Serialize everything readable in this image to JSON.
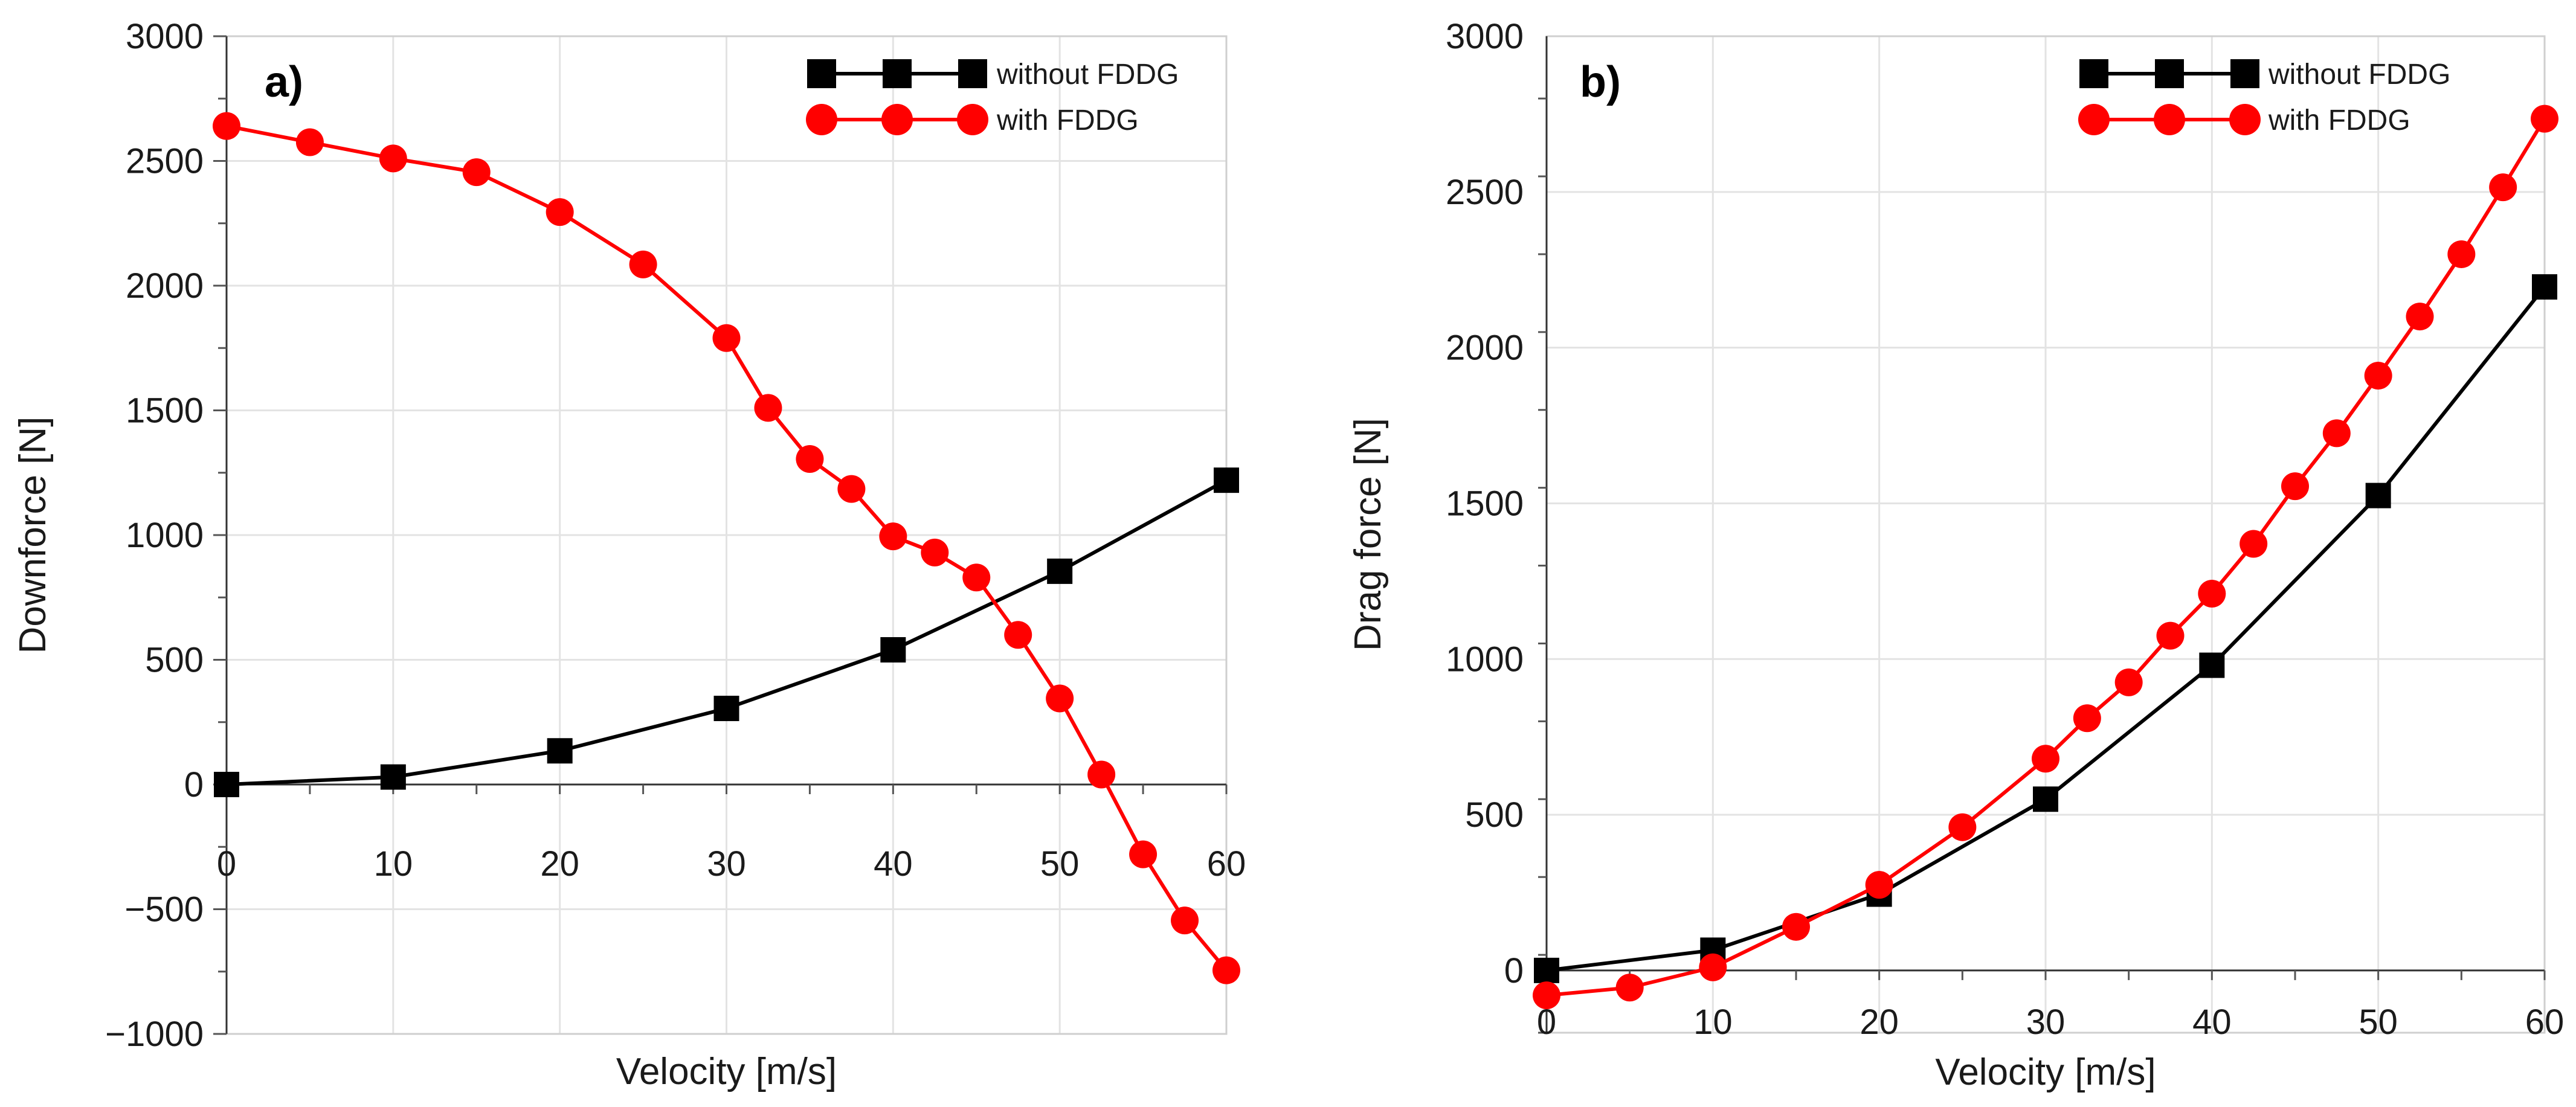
{
  "chart_data": [
    {
      "type": "line",
      "panel_label": "a)",
      "xlabel": "Velocity [m/s]",
      "ylabel": "Downforce [N]",
      "xlim": [
        0,
        60
      ],
      "ylim": [
        -1000,
        3000
      ],
      "xticks": [
        0,
        10,
        20,
        30,
        40,
        50,
        60
      ],
      "yticks": [
        -1000,
        -500,
        0,
        500,
        1000,
        1500,
        2000,
        2500,
        3000
      ],
      "grid": true,
      "legend_position": "top-right",
      "series": [
        {
          "name": "without FDDG",
          "color": "#000000",
          "marker": "square",
          "x": [
            0,
            10,
            20,
            30,
            40,
            50,
            60
          ],
          "y": [
            0,
            30,
            135,
            305,
            540,
            855,
            1220
          ]
        },
        {
          "name": "with FDDG",
          "color": "#ff0000",
          "marker": "circle",
          "x": [
            0,
            5,
            10,
            15,
            20,
            25,
            30,
            32.5,
            35,
            37.5,
            40,
            42.5,
            45,
            47.5,
            50,
            52.5,
            55,
            57.5,
            60
          ],
          "y": [
            2640,
            2575,
            2510,
            2455,
            2295,
            2085,
            1790,
            1510,
            1305,
            1185,
            995,
            930,
            830,
            600,
            345,
            40,
            -280,
            -545,
            -745
          ]
        }
      ]
    },
    {
      "type": "line",
      "panel_label": "b)",
      "xlabel": "Velocity [m/s]",
      "ylabel": "Drag force [N]",
      "xlim": [
        0,
        60
      ],
      "ylim": [
        -200,
        3000
      ],
      "xticks": [
        0,
        10,
        20,
        30,
        40,
        50,
        60
      ],
      "yticks": [
        0,
        500,
        1000,
        1500,
        2000,
        2500,
        3000
      ],
      "grid": true,
      "legend_position": "top-right",
      "series": [
        {
          "name": "without FDDG",
          "color": "#000000",
          "marker": "square",
          "x": [
            0,
            10,
            20,
            30,
            40,
            50,
            60
          ],
          "y": [
            0,
            65,
            245,
            550,
            980,
            1525,
            2195
          ]
        },
        {
          "name": "with FDDG",
          "color": "#ff0000",
          "marker": "circle",
          "x": [
            0,
            5,
            10,
            15,
            20,
            25,
            30,
            32.5,
            35,
            37.5,
            40,
            42.5,
            45,
            47.5,
            50,
            52.5,
            55,
            57.5,
            60
          ],
          "y": [
            -80,
            -55,
            10,
            140,
            275,
            460,
            680,
            810,
            925,
            1075,
            1210,
            1370,
            1555,
            1725,
            1910,
            2100,
            2300,
            2515,
            2735
          ]
        }
      ]
    }
  ]
}
